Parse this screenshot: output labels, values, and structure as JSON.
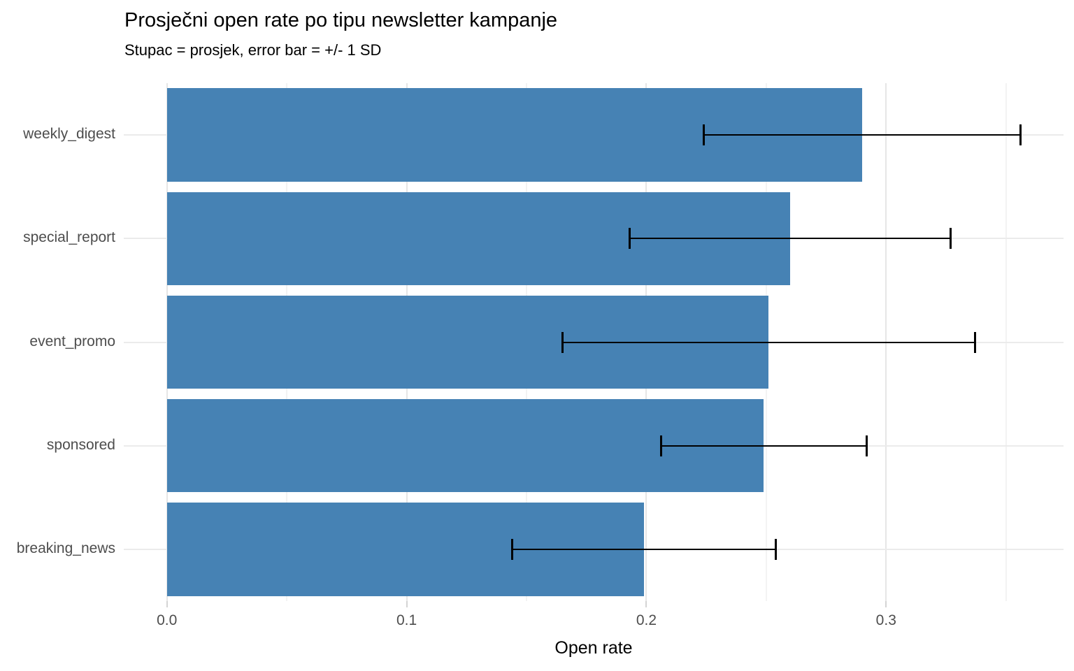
{
  "chart_data": {
    "type": "bar",
    "orientation": "horizontal",
    "title": "Prosječni open rate po tipu newsletter kampanje",
    "subtitle": "Stupac = prosjek, error bar = +/- 1 SD",
    "xlabel": "Open rate",
    "ylabel": "",
    "categories": [
      "weekly_digest",
      "special_report",
      "event_promo",
      "sponsored",
      "breaking_news"
    ],
    "values": [
      0.29,
      0.26,
      0.251,
      0.249,
      0.199
    ],
    "error_sd": [
      0.066,
      0.067,
      0.086,
      0.043,
      0.055
    ],
    "error_low": [
      0.224,
      0.193,
      0.165,
      0.206,
      0.144
    ],
    "error_high": [
      0.356,
      0.327,
      0.337,
      0.292,
      0.254
    ],
    "x_ticks": [
      "0.0",
      "0.1",
      "0.2",
      "0.3"
    ],
    "x_tick_values": [
      0.0,
      0.1,
      0.2,
      0.3
    ],
    "x_minor_values": [
      0.05,
      0.15,
      0.25,
      0.35
    ],
    "xlim": [
      -0.018,
      0.374
    ],
    "bar_color": "#4682B4",
    "error_color": "#000000",
    "grid": true,
    "legend": false
  }
}
